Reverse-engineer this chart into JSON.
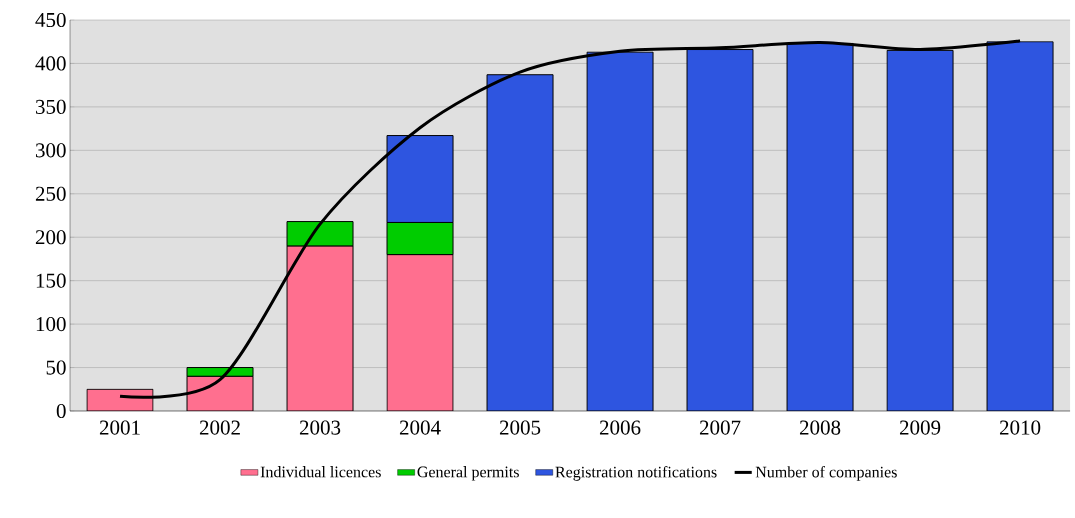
{
  "chart_data": {
    "type": "bar",
    "stacked": true,
    "categories": [
      "2001",
      "2002",
      "2003",
      "2004",
      "2005",
      "2006",
      "2007",
      "2008",
      "2009",
      "2010"
    ],
    "series": [
      {
        "name": "Individual licences",
        "color": "#ff6f8f",
        "values": [
          25,
          40,
          190,
          180,
          null,
          null,
          null,
          null,
          null,
          null
        ]
      },
      {
        "name": "General permits",
        "color": "#00cc00",
        "values": [
          null,
          10,
          28,
          37,
          null,
          null,
          null,
          null,
          null,
          null
        ]
      },
      {
        "name": "Registration notifications",
        "color": "#2e55e0",
        "values": [
          null,
          null,
          null,
          100,
          387,
          413,
          416,
          423,
          415,
          425
        ]
      },
      {
        "name": "Number of companies",
        "type": "line",
        "color": "#000000",
        "values": [
          17,
          36,
          215,
          326,
          390,
          414,
          418,
          424,
          416,
          426
        ]
      }
    ],
    "ylim": [
      0,
      450
    ],
    "yticks": [
      0,
      50,
      100,
      150,
      200,
      250,
      300,
      350,
      400,
      450
    ],
    "grid": "y",
    "legend": "bottom"
  }
}
